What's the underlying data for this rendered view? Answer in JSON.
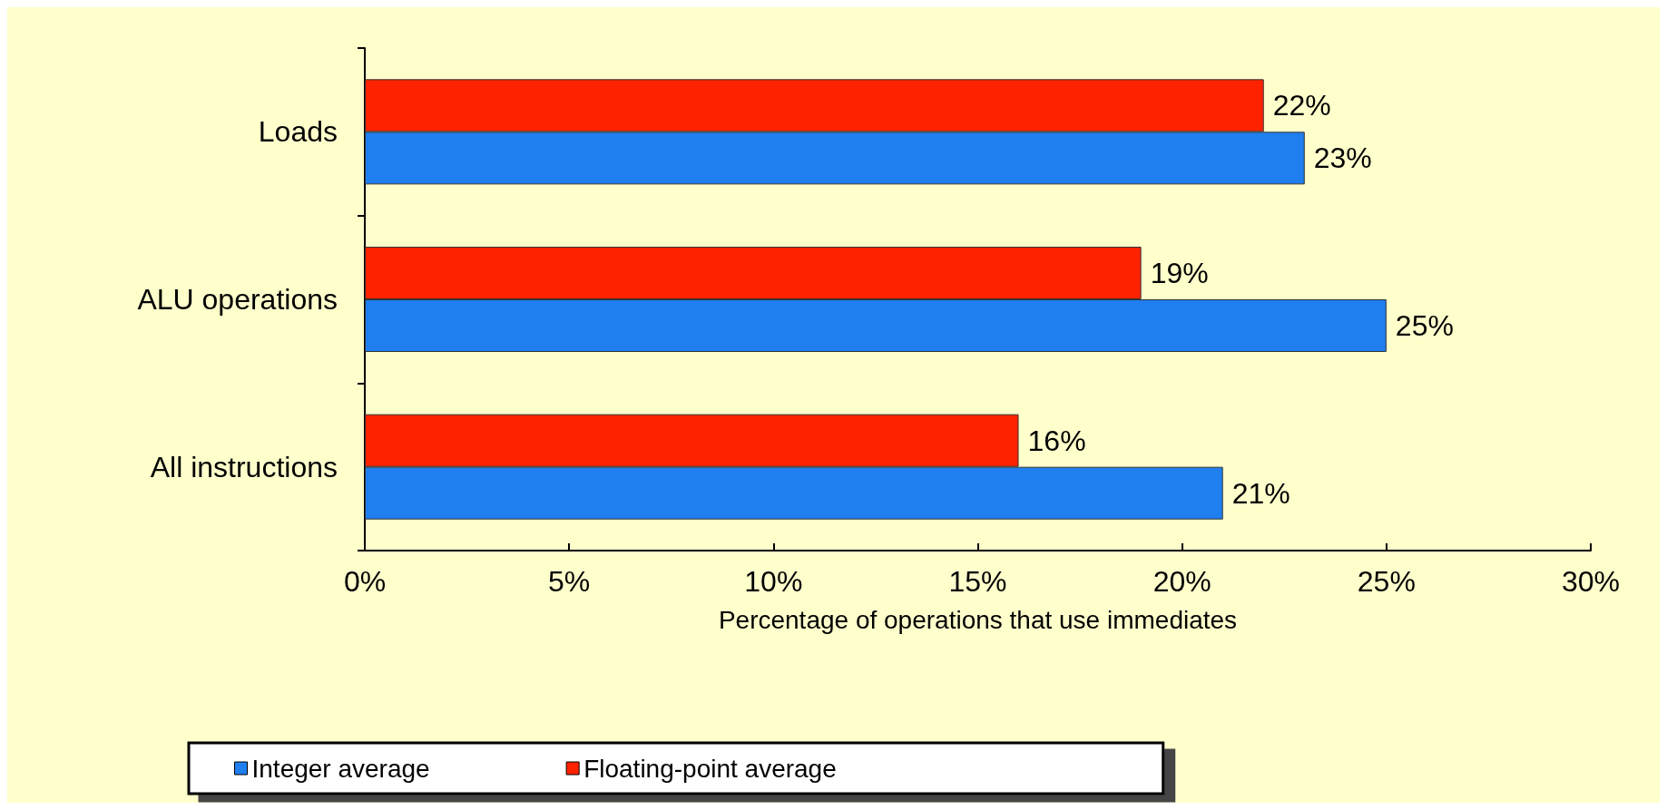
{
  "chart_data": {
    "type": "bar",
    "orientation": "horizontal",
    "xlabel": "Percentage of operations that use immediates",
    "categories": [
      "Loads",
      "ALU operations",
      "All instructions"
    ],
    "series": [
      {
        "name": "Integer average",
        "color": "#1f7fef",
        "values": [
          23,
          25,
          21
        ],
        "value_labels": [
          "23%",
          "25%",
          "21%"
        ]
      },
      {
        "name": "Floating-point average",
        "color": "#ff2200",
        "values": [
          22,
          19,
          16
        ],
        "value_labels": [
          "22%",
          "19%",
          "16%"
        ]
      }
    ],
    "xlim": [
      0,
      30
    ],
    "xticks": [
      {
        "value": 0,
        "label": "0%"
      },
      {
        "value": 5,
        "label": "5%"
      },
      {
        "value": 10,
        "label": "10%"
      },
      {
        "value": 15,
        "label": "15%"
      },
      {
        "value": 20,
        "label": "20%"
      },
      {
        "value": 25,
        "label": "25%"
      },
      {
        "value": 30,
        "label": "30%"
      }
    ],
    "grid": false,
    "legend": "bottom"
  }
}
